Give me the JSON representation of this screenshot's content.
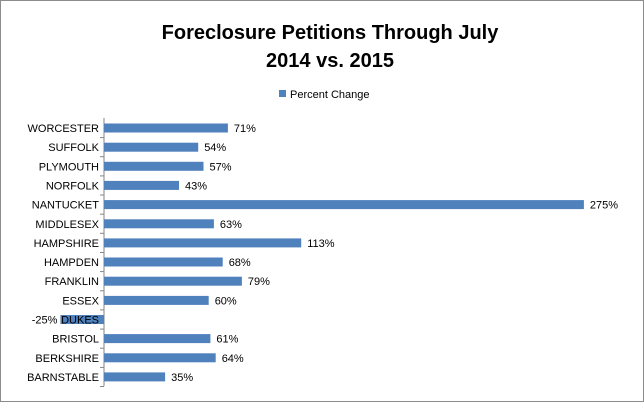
{
  "chart_data": {
    "type": "bar",
    "orientation": "horizontal",
    "title": "Foreclosure Petitions Through July",
    "subtitle": "2014 vs. 2015",
    "xlabel": "",
    "ylabel": "",
    "grid": false,
    "legend_position": "top",
    "categories": [
      "WORCESTER",
      "SUFFOLK",
      "PLYMOUTH",
      "NORFOLK",
      "NANTUCKET",
      "MIDDLESEX",
      "HAMPSHIRE",
      "HAMPDEN",
      "FRANKLIN",
      "ESSEX",
      "DUKES",
      "BRISTOL",
      "BERKSHIRE",
      "BARNSTABLE"
    ],
    "series": [
      {
        "name": "Percent Change",
        "color": "#4f81bd",
        "values": [
          71,
          54,
          57,
          43,
          275,
          63,
          113,
          68,
          79,
          60,
          -25,
          61,
          64,
          35
        ],
        "labels": [
          "71%",
          "54%",
          "57%",
          "43%",
          "275%",
          "63%",
          "113%",
          "68%",
          "79%",
          "60%",
          "-25%",
          "61%",
          "64%",
          "35%"
        ]
      }
    ]
  }
}
